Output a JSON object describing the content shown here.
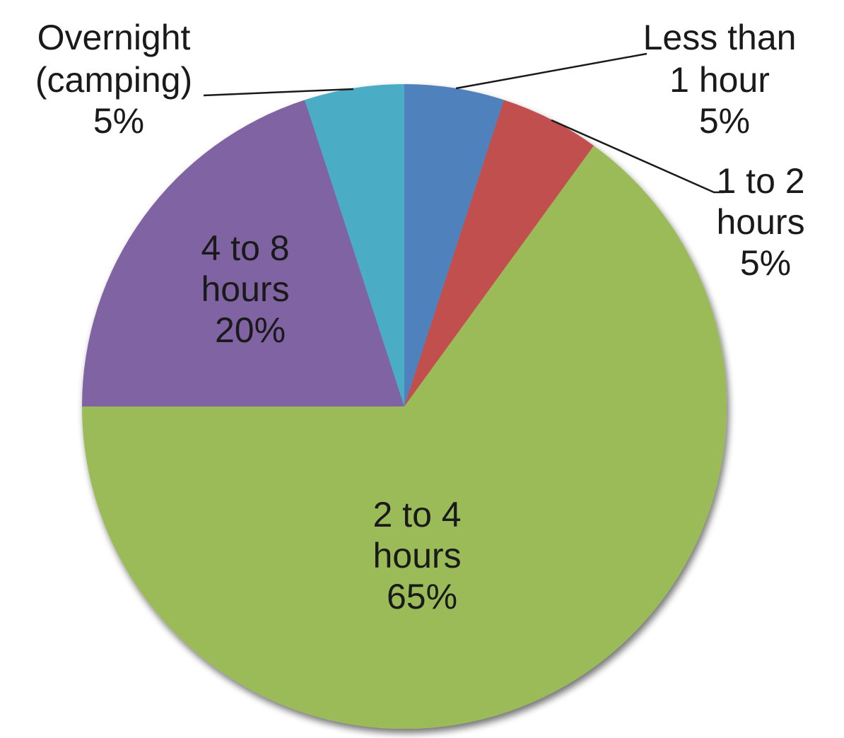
{
  "chart_data": {
    "type": "pie",
    "start_angle_deg": 0,
    "direction": "clockwise",
    "slices": [
      {
        "key": "lt1",
        "label_lines": [
          "Less than",
          "1 hour"
        ],
        "pct_text": "5%",
        "value": 5,
        "color": "#4f81bd"
      },
      {
        "key": "h1to2",
        "label_lines": [
          "1 to 2",
          "hours"
        ],
        "pct_text": "5%",
        "value": 5,
        "color": "#c0504d"
      },
      {
        "key": "h2to4",
        "label_lines": [
          "2 to 4",
          "hours"
        ],
        "pct_text": "65%",
        "value": 65,
        "color": "#9bbb59"
      },
      {
        "key": "h4to8",
        "label_lines": [
          "4 to 8",
          "hours"
        ],
        "pct_text": "20%",
        "value": 20,
        "color": "#8064a2"
      },
      {
        "key": "night",
        "label_lines": [
          "Overnight",
          "(camping)"
        ],
        "pct_text": "5%",
        "value": 5,
        "color": "#4bacc6"
      }
    ]
  }
}
